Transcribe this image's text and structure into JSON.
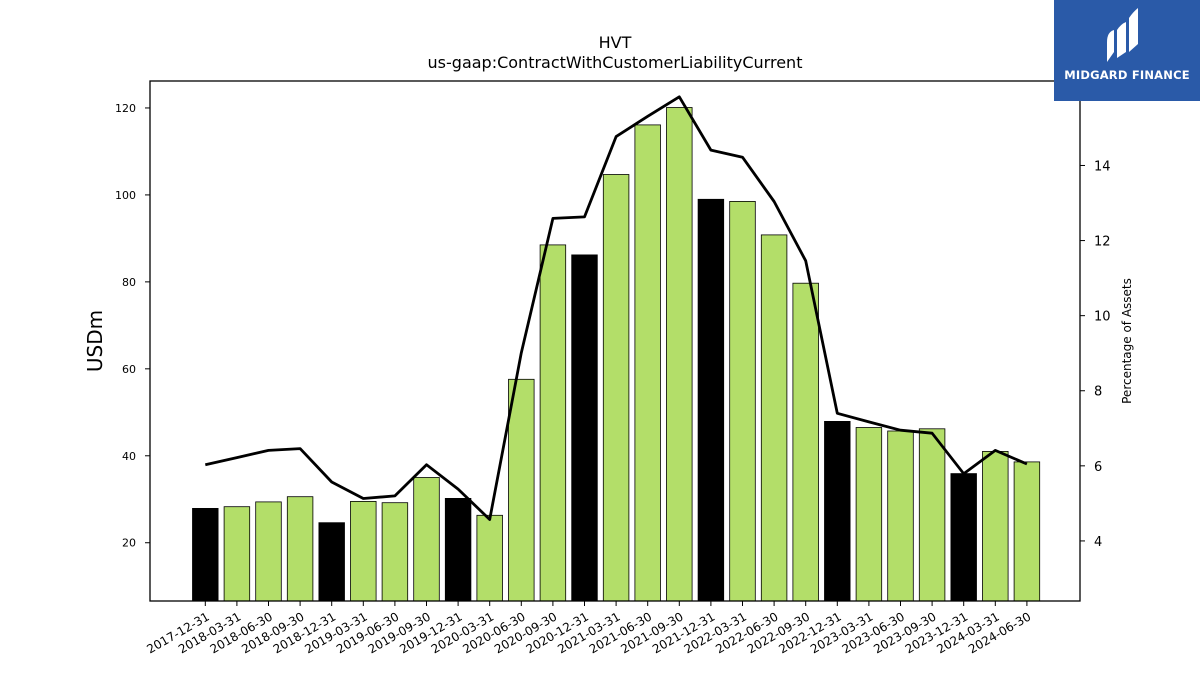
{
  "chart_data": {
    "type": "bar",
    "title": "HVT",
    "subtitle": "us-gaap:ContractWithCustomerLiabilityCurrent",
    "ylabel": "USDm",
    "y2label": "Percentage of Assets",
    "ylim": [
      6.6,
      126.2
    ],
    "y2lim": [
      2.4,
      16.25
    ],
    "yticks": [
      20,
      40,
      60,
      80,
      100,
      120
    ],
    "y2ticks": [
      4,
      6,
      8,
      10,
      12,
      14
    ],
    "categories": [
      "2017-12-31",
      "2018-03-31",
      "2018-06-30",
      "2018-09-30",
      "2018-12-31",
      "2019-03-31",
      "2019-06-30",
      "2019-09-30",
      "2019-12-31",
      "2020-03-31",
      "2020-06-30",
      "2020-09-30",
      "2020-12-31",
      "2021-03-31",
      "2021-06-30",
      "2021-09-30",
      "2021-12-31",
      "2022-03-31",
      "2022-06-30",
      "2022-09-30",
      "2022-12-31",
      "2023-03-31",
      "2023-06-30",
      "2023-09-30",
      "2023-12-31",
      "2024-03-31",
      "2024-06-30"
    ],
    "series": [
      {
        "values": [
          27.9,
          28.3,
          29.4,
          30.6,
          24.6,
          29.5,
          29.2,
          35.0,
          30.2,
          26.3,
          57.6,
          88.5,
          86.2,
          104.7,
          116.1,
          120.1,
          99.0,
          98.5,
          90.8,
          79.7,
          47.9,
          46.5,
          45.7,
          46.2,
          35.9,
          41.0,
          38.6
        ],
        "bar_colors": [
          "#000000",
          "#b3de69",
          "#b3de69",
          "#b3de69",
          "#000000",
          "#b3de69",
          "#b3de69",
          "#b3de69",
          "#000000",
          "#b3de69",
          "#b3de69",
          "#b3de69",
          "#000000",
          "#b3de69",
          "#b3de69",
          "#b3de69",
          "#000000",
          "#b3de69",
          "#b3de69",
          "#b3de69",
          "#000000",
          "#b3de69",
          "#b3de69",
          "#b3de69",
          "#000000",
          "#b3de69",
          "#b3de69"
        ]
      },
      {
        "axis": "right",
        "type": "line",
        "color": "#000000",
        "values": [
          6.03,
          6.22,
          6.41,
          6.46,
          5.57,
          5.13,
          5.2,
          6.03,
          5.38,
          4.57,
          9.01,
          12.59,
          12.63,
          14.77,
          15.31,
          15.83,
          14.41,
          14.22,
          13.04,
          11.46,
          7.4,
          7.17,
          6.95,
          6.87,
          5.79,
          6.41,
          6.05
        ]
      }
    ],
    "grid": false,
    "legend": "none"
  },
  "logo": {
    "text": "MIDGARD FINANCE"
  }
}
